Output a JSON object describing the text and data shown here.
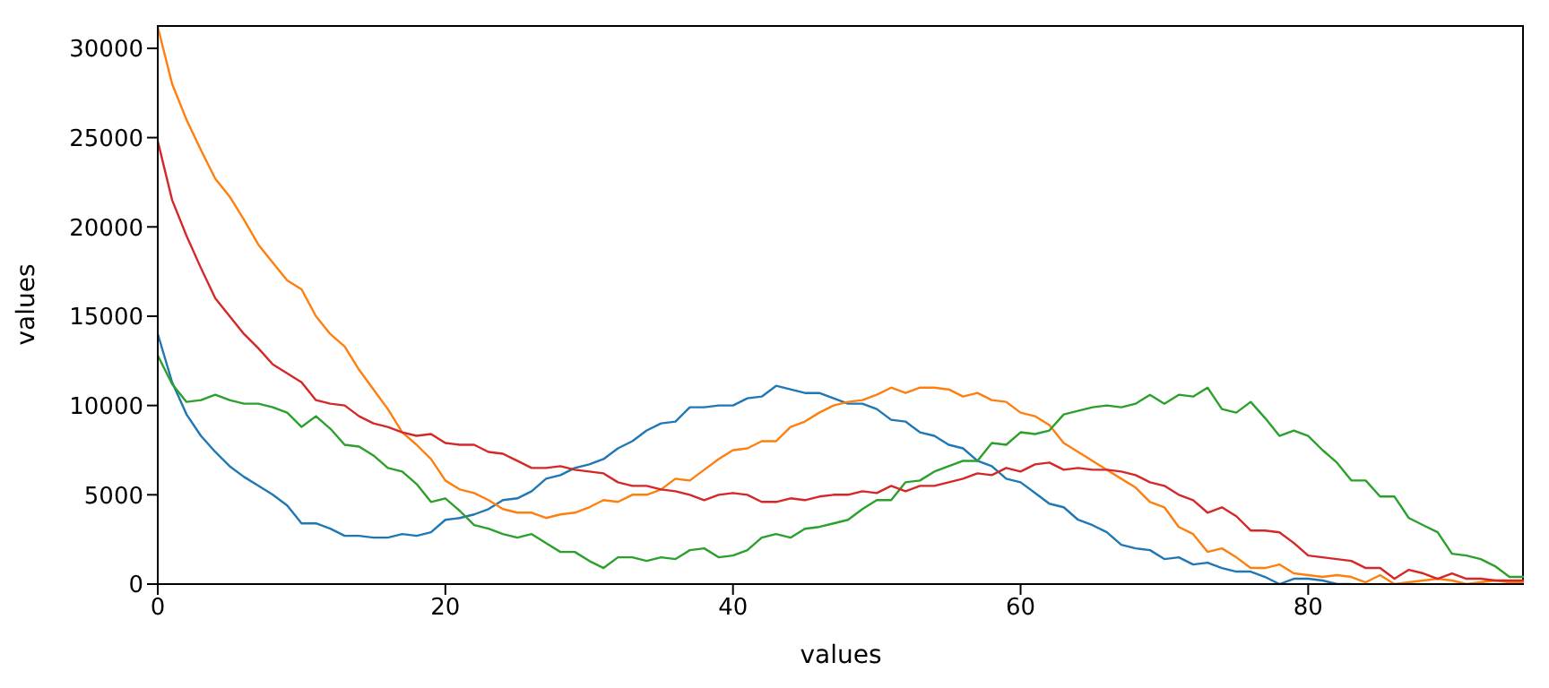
{
  "chart_data": {
    "type": "line",
    "xlabel": "values",
    "ylabel": "values",
    "x": [
      0,
      1,
      2,
      3,
      4,
      5,
      6,
      7,
      8,
      9,
      10,
      11,
      12,
      13,
      14,
      15,
      16,
      17,
      18,
      19,
      20,
      21,
      22,
      23,
      24,
      25,
      26,
      27,
      28,
      29,
      30,
      31,
      32,
      33,
      34,
      35,
      36,
      37,
      38,
      39,
      40,
      41,
      42,
      43,
      44,
      45,
      46,
      47,
      48,
      49,
      50,
      51,
      52,
      53,
      54,
      55,
      56,
      57,
      58,
      59,
      60,
      61,
      62,
      63,
      64,
      65,
      66,
      67,
      68,
      69,
      70,
      71,
      72,
      73,
      74,
      75,
      76,
      77,
      78,
      79,
      80,
      81,
      82,
      83,
      84,
      85,
      86,
      87,
      88,
      89,
      90,
      91,
      92,
      93,
      94,
      95
    ],
    "series": [
      {
        "color": "#1f77b4",
        "values": [
          14000,
          11300,
          9500,
          8300,
          7400,
          6600,
          6000,
          5500,
          5000,
          4400,
          3400,
          3400,
          3100,
          2700,
          2700,
          2600,
          2600,
          2800,
          2700,
          2900,
          3600,
          3700,
          3900,
          4200,
          4700,
          4800,
          5200,
          5900,
          6100,
          6500,
          6700,
          7000,
          7600,
          8000,
          8600,
          9000,
          9100,
          9900,
          9900,
          10000,
          10000,
          10400,
          10500,
          11100,
          10900,
          10700,
          10700,
          10400,
          10100,
          10100,
          9800,
          9200,
          9100,
          8500,
          8300,
          7800,
          7600,
          6900,
          6600,
          5900,
          5700,
          5100,
          4500,
          4300,
          3600,
          3300,
          2900,
          2200,
          2000,
          1900,
          1400,
          1500,
          1100,
          1200,
          900,
          700,
          700,
          400,
          0,
          300,
          300,
          200,
          0,
          0,
          null,
          null,
          null,
          null,
          null,
          null,
          null,
          null,
          null,
          null,
          null,
          null
        ]
      },
      {
        "color": "#ff7f0e",
        "values": [
          31200,
          28000,
          26000,
          24300,
          22700,
          21700,
          20400,
          19000,
          18000,
          17000,
          16500,
          15000,
          14000,
          13300,
          12000,
          10900,
          9800,
          8500,
          7800,
          7000,
          5800,
          5300,
          5100,
          4700,
          4200,
          4000,
          4000,
          3700,
          3900,
          4000,
          4300,
          4700,
          4600,
          5000,
          5000,
          5300,
          5900,
          5800,
          6400,
          7000,
          7500,
          7600,
          8000,
          8000,
          8800,
          9100,
          9600,
          10000,
          10200,
          10300,
          10600,
          11000,
          10700,
          11000,
          11000,
          10900,
          10500,
          10700,
          10300,
          10200,
          9600,
          9400,
          8900,
          7900,
          7400,
          6900,
          6400,
          5900,
          5400,
          4600,
          4300,
          3200,
          2800,
          1800,
          2000,
          1500,
          900,
          900,
          1100,
          600,
          500,
          400,
          500,
          400,
          100,
          500,
          0,
          100,
          200,
          300,
          200,
          0,
          100,
          200,
          100,
          100
        ]
      },
      {
        "color": "#2ca02c",
        "values": [
          12800,
          11200,
          10200,
          10300,
          10600,
          10300,
          10100,
          10100,
          9900,
          9600,
          8800,
          9400,
          8700,
          7800,
          7700,
          7200,
          6500,
          6300,
          5600,
          4600,
          4800,
          4100,
          3300,
          3100,
          2800,
          2600,
          2800,
          2300,
          1800,
          1800,
          1300,
          900,
          1500,
          1500,
          1300,
          1500,
          1400,
          1900,
          2000,
          1500,
          1600,
          1900,
          2600,
          2800,
          2600,
          3100,
          3200,
          3400,
          3600,
          4200,
          4700,
          4700,
          5700,
          5800,
          6300,
          6600,
          6900,
          6900,
          7900,
          7800,
          8500,
          8400,
          8600,
          9500,
          9700,
          9900,
          10000,
          9900,
          10100,
          10600,
          10100,
          10600,
          10500,
          11000,
          9800,
          9600,
          10200,
          9300,
          8300,
          8600,
          8300,
          7500,
          6800,
          5800,
          5800,
          4900,
          4900,
          3700,
          3300,
          2900,
          1700,
          1600,
          1400,
          1000,
          400,
          400
        ]
      },
      {
        "color": "#d62728",
        "values": [
          24800,
          21500,
          19500,
          17700,
          16000,
          15000,
          14000,
          13200,
          12300,
          11800,
          11300,
          10300,
          10100,
          10000,
          9400,
          9000,
          8800,
          8500,
          8300,
          8400,
          7900,
          7800,
          7800,
          7400,
          7300,
          6900,
          6500,
          6500,
          6600,
          6400,
          6300,
          6200,
          5700,
          5500,
          5500,
          5300,
          5200,
          5000,
          4700,
          5000,
          5100,
          5000,
          4600,
          4600,
          4800,
          4700,
          4900,
          5000,
          5000,
          5200,
          5100,
          5500,
          5200,
          5500,
          5500,
          5700,
          5900,
          6200,
          6100,
          6500,
          6300,
          6700,
          6800,
          6400,
          6500,
          6400,
          6400,
          6300,
          6100,
          5700,
          5500,
          5000,
          4700,
          4000,
          4300,
          3800,
          3000,
          3000,
          2900,
          2300,
          1600,
          1500,
          1400,
          1300,
          900,
          900,
          300,
          800,
          600,
          300,
          600,
          300,
          300,
          200,
          200,
          200
        ]
      }
    ],
    "xlim": [
      0,
      95
    ],
    "xticks": [
      0,
      20,
      40,
      60,
      80
    ],
    "ylim": [
      0,
      31300
    ],
    "yticks": [
      0,
      5000,
      10000,
      15000,
      20000,
      25000,
      30000
    ]
  }
}
